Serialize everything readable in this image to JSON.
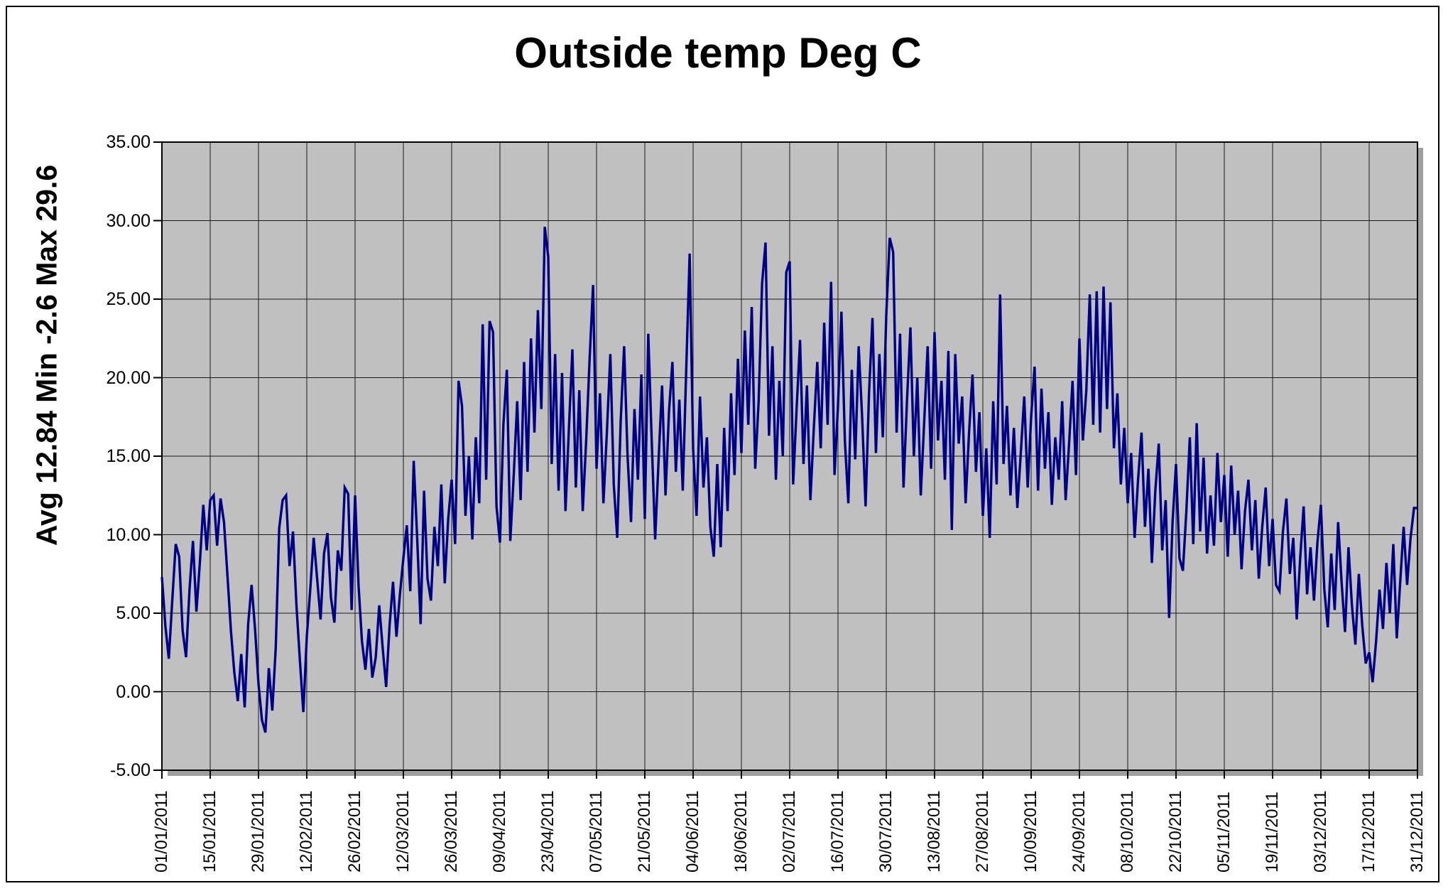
{
  "title": "Outside temp Deg C",
  "y_axis_label": "Avg 12.84 Min -2.6 Max 29.6",
  "stats": {
    "avg": 12.84,
    "min": -2.6,
    "max": 29.6
  },
  "chart_data": {
    "type": "line",
    "title": "Outside temp Deg C",
    "ylabel": "Avg 12.84 Min -2.6 Max 29.6",
    "xlabel": "",
    "ylim": [
      -5,
      35
    ],
    "y_tick_step": 5,
    "grid": true,
    "legend": "none",
    "plot_bg_color": "#c0c0c0",
    "grid_color": "#1a1a1a",
    "line_color": "#000087",
    "shadow_color": "#9e9e9e",
    "y_tick_labels": [
      "35.00",
      "30.00",
      "25.00",
      "20.00",
      "15.00",
      "10.00",
      "5.00",
      "0.00",
      "-5.00"
    ],
    "x_tick_labels": [
      "01/01/2011",
      "15/01/2011",
      "29/01/2011",
      "12/02/2011",
      "26/02/2011",
      "12/03/2011",
      "26/03/2011",
      "09/04/2011",
      "23/04/2011",
      "07/05/2011",
      "21/05/2011",
      "04/06/2011",
      "18/06/2011",
      "02/07/2011",
      "16/07/2011",
      "30/07/2011",
      "13/08/2011",
      "27/08/2011",
      "10/09/2011",
      "24/09/2011",
      "08/10/2011",
      "22/10/2011",
      "05/11/2011",
      "19/11/2011",
      "03/12/2011",
      "17/12/2011",
      "31/12/2011"
    ],
    "x_days": 365,
    "series_name": "Outside temp",
    "values": [
      7.3,
      4.2,
      2.1,
      5.8,
      9.4,
      8.6,
      3.9,
      2.2,
      6.5,
      9.6,
      5.1,
      8.2,
      11.9,
      9.0,
      12.2,
      12.5,
      9.3,
      12.3,
      10.8,
      7.4,
      3.9,
      1.2,
      -0.6,
      2.4,
      -1.0,
      4.3,
      6.8,
      4.0,
      0.5,
      -1.8,
      -2.6,
      1.5,
      -1.2,
      2.8,
      10.4,
      12.2,
      12.5,
      8.0,
      10.2,
      5.5,
      2.0,
      -1.3,
      3.5,
      6.5,
      9.8,
      7.2,
      4.6,
      8.8,
      10.1,
      6.0,
      4.4,
      9.0,
      7.7,
      13.0,
      12.6,
      5.2,
      12.5,
      6.8,
      3.2,
      1.4,
      4.0,
      0.9,
      2.2,
      5.5,
      2.8,
      0.3,
      4.2,
      7.0,
      3.5,
      6.2,
      8.5,
      10.6,
      6.4,
      14.7,
      9.8,
      4.3,
      12.8,
      7.2,
      5.8,
      10.5,
      8.0,
      13.2,
      6.9,
      11.0,
      13.5,
      9.4,
      19.8,
      18.2,
      11.2,
      15.0,
      9.7,
      16.2,
      12.0,
      23.4,
      13.5,
      23.6,
      22.9,
      11.8,
      9.5,
      17.0,
      20.5,
      9.6,
      13.8,
      18.5,
      12.2,
      21.0,
      14.0,
      22.5,
      16.5,
      24.3,
      18.0,
      29.6,
      27.7,
      14.5,
      21.5,
      12.8,
      20.3,
      11.5,
      16.8,
      21.8,
      13.0,
      19.2,
      11.5,
      16.0,
      21.2,
      25.9,
      14.2,
      19.0,
      12.0,
      16.5,
      21.5,
      13.2,
      9.8,
      17.2,
      22.0,
      15.0,
      10.8,
      18.0,
      13.5,
      20.2,
      11.0,
      22.8,
      16.0,
      9.7,
      14.8,
      19.5,
      12.5,
      17.8,
      21.0,
      14.0,
      18.6,
      12.8,
      20.5,
      27.9,
      15.5,
      11.2,
      18.8,
      13.0,
      16.2,
      10.5,
      8.6,
      14.5,
      9.2,
      16.8,
      11.5,
      19.0,
      13.8,
      21.2,
      15.2,
      23.0,
      17.0,
      24.5,
      14.2,
      18.5,
      26.0,
      28.6,
      16.3,
      22.0,
      13.5,
      19.8,
      15.0,
      26.7,
      27.4,
      13.2,
      18.0,
      22.4,
      14.5,
      19.5,
      12.2,
      16.8,
      21.0,
      15.5,
      23.5,
      17.0,
      26.1,
      13.8,
      18.2,
      24.2,
      16.0,
      12.0,
      20.5,
      14.8,
      22.0,
      17.5,
      11.8,
      19.0,
      23.8,
      15.2,
      21.5,
      16.2,
      24.0,
      28.9,
      28.0,
      16.5,
      22.8,
      13.0,
      18.5,
      23.2,
      15.0,
      20.0,
      12.5,
      17.2,
      22.0,
      14.2,
      22.9,
      16.0,
      19.8,
      13.5,
      21.7,
      10.3,
      21.5,
      15.8,
      18.8,
      12.0,
      16.5,
      20.2,
      14.0,
      17.8,
      11.2,
      15.5,
      9.8,
      18.5,
      13.2,
      25.3,
      14.5,
      18.2,
      12.5,
      16.8,
      11.7,
      15.2,
      18.8,
      13.0,
      17.5,
      20.7,
      12.8,
      19.3,
      14.2,
      17.8,
      11.9,
      16.2,
      13.5,
      18.5,
      12.2,
      15.8,
      19.8,
      13.8,
      22.5,
      16.0,
      19.2,
      25.3,
      17.0,
      25.5,
      16.5,
      25.8,
      18.0,
      24.8,
      15.5,
      19.0,
      13.2,
      16.8,
      12.0,
      15.2,
      9.8,
      13.5,
      16.5,
      10.5,
      14.2,
      8.2,
      12.8,
      15.8,
      9.0,
      12.2,
      4.7,
      10.8,
      14.5,
      8.5,
      7.7,
      11.5,
      16.2,
      9.4,
      17.1,
      10.2,
      14.9,
      8.8,
      12.5,
      9.3,
      15.2,
      10.8,
      13.8,
      8.6,
      14.4,
      10.0,
      12.8,
      7.8,
      11.5,
      13.5,
      9.0,
      12.2,
      7.2,
      10.5,
      13.0,
      8.0,
      11.0,
      6.8,
      6.4,
      10.2,
      12.3,
      7.5,
      9.8,
      4.6,
      8.5,
      11.8,
      6.2,
      9.2,
      5.8,
      9.5,
      11.9,
      6.5,
      4.1,
      8.8,
      5.2,
      10.8,
      7.0,
      3.8,
      9.2,
      5.5,
      3.0,
      7.5,
      4.2,
      1.8,
      2.5,
      0.6,
      3.2,
      6.5,
      4.0,
      8.2,
      5.0,
      9.4,
      3.4,
      7.0,
      10.5,
      6.8,
      9.8,
      11.7,
      11.7
    ]
  }
}
